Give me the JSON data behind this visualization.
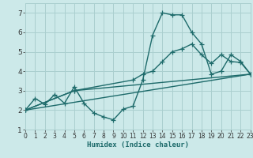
{
  "background_color": "#cce9e9",
  "grid_color": "#aacfcf",
  "line_color": "#1e6b6b",
  "series": [
    {
      "x": [
        0,
        1,
        2,
        3,
        4,
        5,
        6,
        7,
        8,
        9,
        10,
        11,
        12,
        13,
        14,
        15,
        16,
        17,
        18,
        19,
        20,
        21,
        22,
        23
      ],
      "y": [
        2.0,
        2.6,
        2.3,
        2.8,
        2.35,
        3.2,
        2.35,
        1.85,
        1.65,
        1.5,
        2.05,
        2.2,
        3.55,
        5.85,
        7.0,
        6.9,
        6.9,
        6.0,
        5.4,
        3.85,
        4.0,
        4.85,
        4.5,
        3.85
      ]
    },
    {
      "x": [
        0,
        5,
        11,
        12,
        13,
        14,
        15,
        16,
        17,
        18,
        19,
        20,
        21,
        22,
        23
      ],
      "y": [
        2.0,
        3.0,
        3.55,
        3.85,
        4.0,
        4.5,
        5.0,
        5.15,
        5.4,
        4.85,
        4.4,
        4.85,
        4.5,
        4.45,
        3.85
      ]
    },
    {
      "x": [
        0,
        23
      ],
      "y": [
        2.0,
        3.85
      ]
    },
    {
      "x": [
        0,
        5,
        23
      ],
      "y": [
        2.0,
        3.0,
        3.85
      ]
    }
  ],
  "xlim": [
    0,
    23
  ],
  "ylim": [
    1.0,
    7.5
  ],
  "yticks": [
    1,
    2,
    3,
    4,
    5,
    6,
    7
  ],
  "xtick_labels": [
    "0",
    "1",
    "2",
    "3",
    "4",
    "5",
    "6",
    "7",
    "8",
    "9",
    "10",
    "11",
    "12",
    "13",
    "14",
    "15",
    "16",
    "17",
    "18",
    "19",
    "20",
    "21",
    "22",
    "23"
  ],
  "xlabel": "Humidex (Indice chaleur)",
  "marker": "+",
  "markersize": 4,
  "linewidth": 1.0
}
